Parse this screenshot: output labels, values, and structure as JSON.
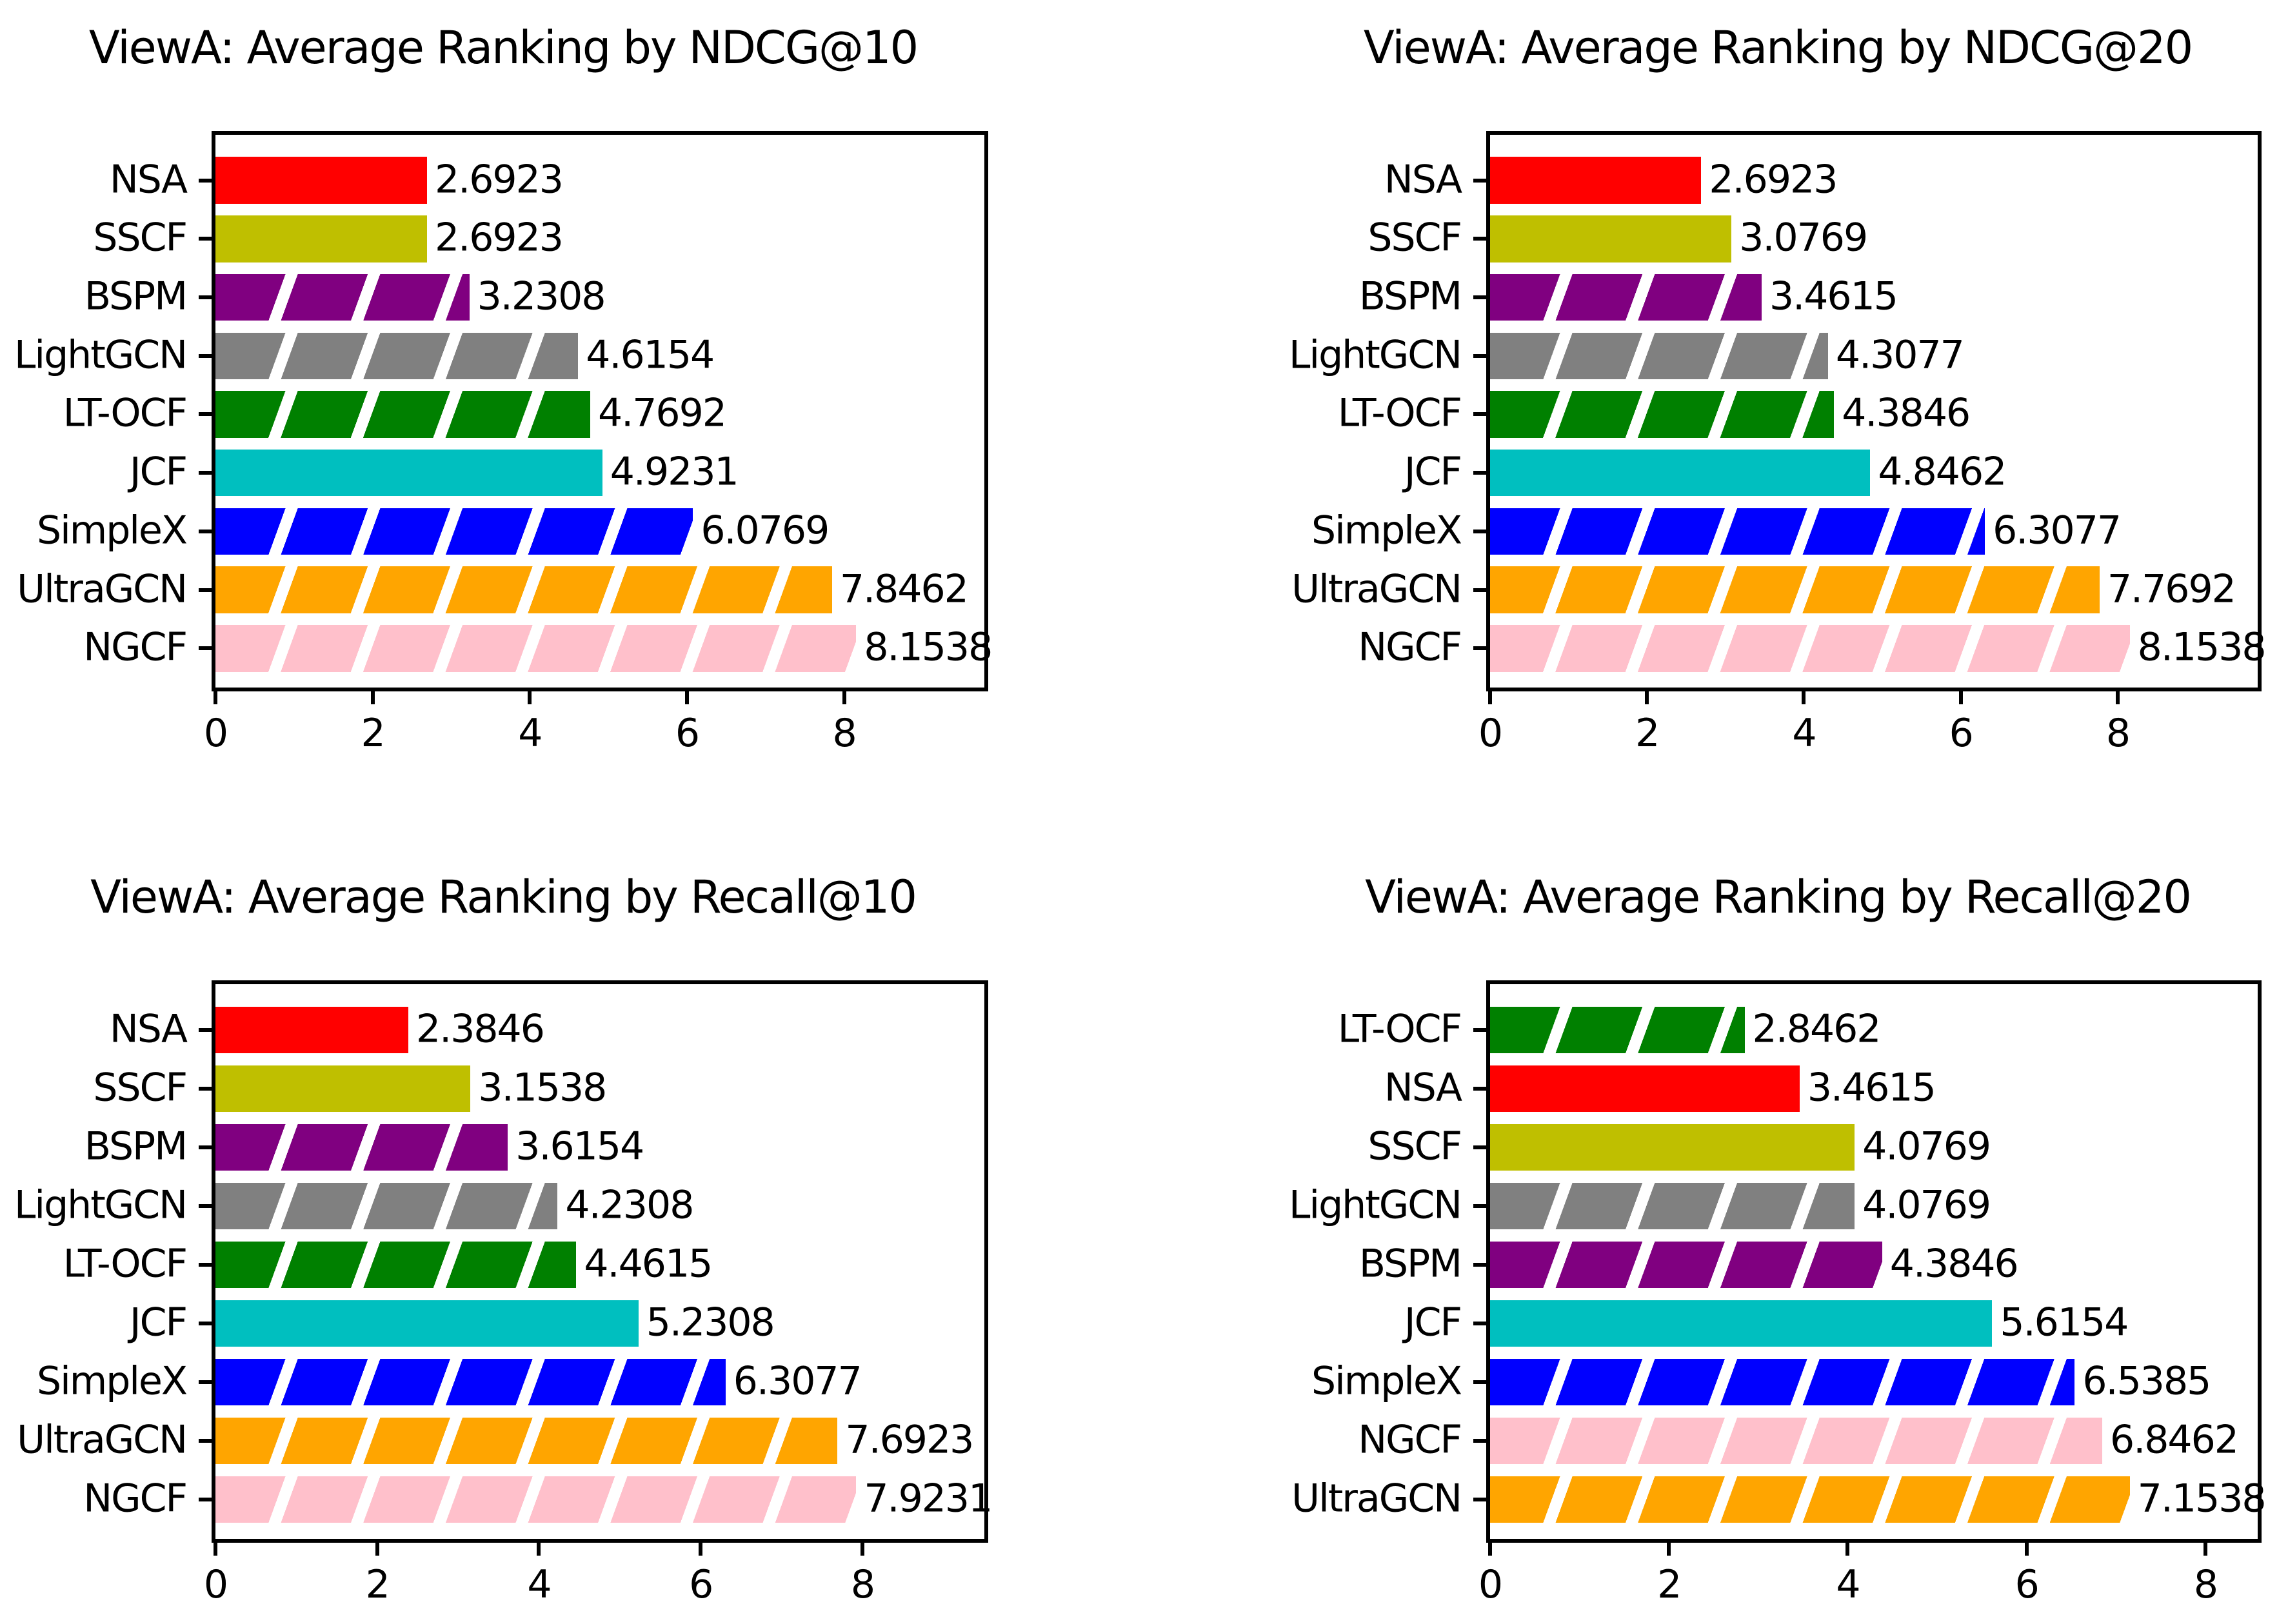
{
  "figure": {
    "background": "#ffffff",
    "axis_color": "#000000",
    "grid": false,
    "legend": false
  },
  "bar_styles": {
    "NSA": {
      "color": "#ff0000",
      "hatched": false
    },
    "SSCF": {
      "color": "#bfbf00",
      "hatched": false
    },
    "BSPM": {
      "color": "#800080",
      "hatched": true
    },
    "LightGCN": {
      "color": "#808080",
      "hatched": true
    },
    "LT-OCF": {
      "color": "#008000",
      "hatched": true
    },
    "JCF": {
      "color": "#00bfbf",
      "hatched": false
    },
    "SimpleX": {
      "color": "#0000ff",
      "hatched": true
    },
    "UltraGCN": {
      "color": "#ffa500",
      "hatched": true
    },
    "NGCF": {
      "color": "#ffc0cb",
      "hatched": true
    }
  },
  "hatch_pattern": "/",
  "chart_data": [
    {
      "type": "bar",
      "orientation": "horizontal",
      "title": "ViewA: Average Ranking by NDCG@10",
      "categories": [
        "NSA",
        "SSCF",
        "BSPM",
        "LightGCN",
        "LT-OCF",
        "JCF",
        "SimpleX",
        "UltraGCN",
        "NGCF"
      ],
      "values": [
        2.6923,
        2.6923,
        3.2308,
        4.6154,
        4.7692,
        4.9231,
        6.0769,
        7.8462,
        8.1538
      ],
      "value_labels": [
        "2.6923",
        "2.6923",
        "3.2308",
        "4.6154",
        "4.7692",
        "4.9231",
        "6.0769",
        "7.8462",
        "8.1538"
      ],
      "xlabel": "",
      "ylabel": "",
      "xticks": [
        0,
        2,
        4,
        6,
        8
      ],
      "xtick_labels": [
        "0",
        "2",
        "4",
        "6",
        "8"
      ],
      "xlim": [
        0,
        9.7846
      ]
    },
    {
      "type": "bar",
      "orientation": "horizontal",
      "title": "ViewA: Average Ranking by NDCG@20",
      "categories": [
        "NSA",
        "SSCF",
        "BSPM",
        "LightGCN",
        "LT-OCF",
        "JCF",
        "SimpleX",
        "UltraGCN",
        "NGCF"
      ],
      "values": [
        2.6923,
        3.0769,
        3.4615,
        4.3077,
        4.3846,
        4.8462,
        6.3077,
        7.7692,
        8.1538
      ],
      "value_labels": [
        "2.6923",
        "3.0769",
        "3.4615",
        "4.3077",
        "4.3846",
        "4.8462",
        "6.3077",
        "7.7692",
        "8.1538"
      ],
      "xlabel": "",
      "ylabel": "",
      "xticks": [
        0,
        2,
        4,
        6,
        8
      ],
      "xtick_labels": [
        "0",
        "2",
        "4",
        "6",
        "8"
      ],
      "xlim": [
        0,
        9.7846
      ]
    },
    {
      "type": "bar",
      "orientation": "horizontal",
      "title": "ViewA: Average Ranking by Recall@10",
      "categories": [
        "NSA",
        "SSCF",
        "BSPM",
        "LightGCN",
        "LT-OCF",
        "JCF",
        "SimpleX",
        "UltraGCN",
        "NGCF"
      ],
      "values": [
        2.3846,
        3.1538,
        3.6154,
        4.2308,
        4.4615,
        5.2308,
        6.3077,
        7.6923,
        7.9231
      ],
      "value_labels": [
        "2.3846",
        "3.1538",
        "3.6154",
        "4.2308",
        "4.4615",
        "5.2308",
        "6.3077",
        "7.6923",
        "7.9231"
      ],
      "xlabel": "",
      "ylabel": "",
      "xticks": [
        0,
        2,
        4,
        6,
        8
      ],
      "xtick_labels": [
        "0",
        "2",
        "4",
        "6",
        "8"
      ],
      "xlim": [
        0,
        9.5077
      ]
    },
    {
      "type": "bar",
      "orientation": "horizontal",
      "title": "ViewA: Average Ranking by Recall@20",
      "categories": [
        "LT-OCF",
        "NSA",
        "SSCF",
        "LightGCN",
        "BSPM",
        "JCF",
        "SimpleX",
        "NGCF",
        "UltraGCN"
      ],
      "values": [
        2.8462,
        3.4615,
        4.0769,
        4.0769,
        4.3846,
        5.6154,
        6.5385,
        6.8462,
        7.1538
      ],
      "value_labels": [
        "2.8462",
        "3.4615",
        "4.0769",
        "4.0769",
        "4.3846",
        "5.6154",
        "6.5385",
        "6.8462",
        "7.1538"
      ],
      "xlabel": "",
      "ylabel": "",
      "xticks": [
        0,
        2,
        4,
        6,
        8
      ],
      "xtick_labels": [
        "0",
        "2",
        "4",
        "6",
        "8"
      ],
      "xlim": [
        0,
        8.5846
      ]
    }
  ]
}
